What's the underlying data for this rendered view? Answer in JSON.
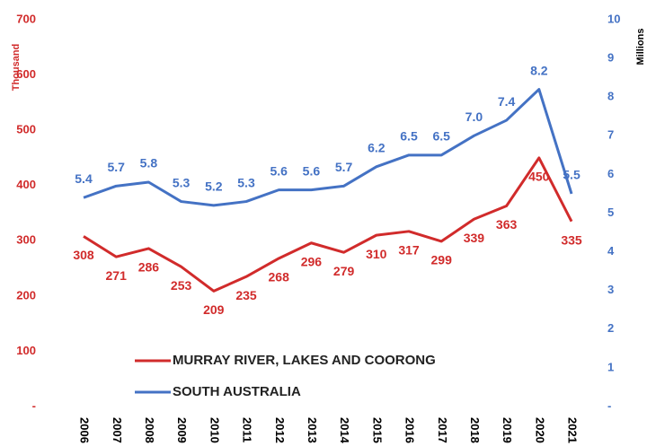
{
  "chart_data": {
    "type": "line",
    "y_label": "Thousand",
    "y2_label": "Millions",
    "categories": [
      "2006",
      "2007",
      "2008",
      "2009",
      "2010",
      "2011",
      "2012",
      "2013",
      "2014",
      "2015",
      "2016",
      "2017",
      "2018",
      "2019",
      "2020",
      "2021"
    ],
    "series": [
      {
        "name": "MURRAY RIVER, LAKES AND COORONG",
        "color": "#d12b2b",
        "axis": "y",
        "values": [
          308,
          271,
          286,
          253,
          209,
          235,
          268,
          296,
          279,
          310,
          317,
          299,
          339,
          363,
          450,
          335
        ]
      },
      {
        "name": "SOUTH AUSTRALIA",
        "color": "#4472c4",
        "axis": "y2",
        "values": [
          5.4,
          5.7,
          5.8,
          5.3,
          5.2,
          5.3,
          5.6,
          5.6,
          5.7,
          6.2,
          6.5,
          6.5,
          7.0,
          7.4,
          8.2,
          5.5
        ],
        "value_labels": [
          "5.4",
          "5.7",
          "5.8",
          "5.3",
          "5.2",
          "5.3",
          "5.6",
          "5.6",
          "5.7",
          "6.2",
          "6.5",
          "6.5",
          "7.0",
          "7.4",
          "8.2",
          "5.5"
        ]
      }
    ],
    "ylim": [
      0,
      700
    ],
    "yticks": [
      {
        "value": 0,
        "label": "-"
      },
      100,
      200,
      300,
      400,
      500,
      600,
      700
    ],
    "y2lim": [
      0,
      10
    ],
    "y2ticks": [
      {
        "value": 0,
        "label": "-"
      },
      1,
      2,
      3,
      4,
      5,
      6,
      7,
      8,
      9,
      10
    ],
    "grid": false
  }
}
